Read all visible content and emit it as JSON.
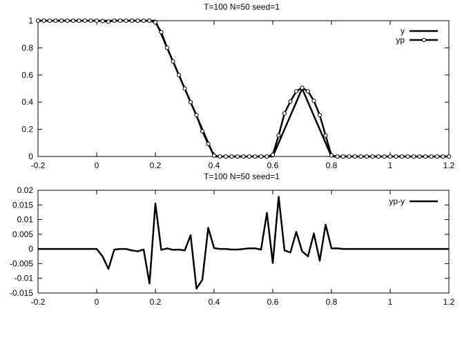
{
  "chart_data": [
    {
      "type": "line",
      "title": "T=100 N=50 seed=1",
      "xlim": [
        -0.2,
        1.2
      ],
      "ylim": [
        0,
        1
      ],
      "xticks": [
        "-0.2",
        "0",
        "0.2",
        "0.4",
        "0.6",
        "0.8",
        "1",
        "1.2"
      ],
      "yticks": [
        "0",
        "0.2",
        "0.4",
        "0.6",
        "0.8",
        "1"
      ],
      "legend_position": "top-right",
      "grid": false,
      "series": [
        {
          "name": "y",
          "style": "line",
          "color": "#000000",
          "x": [
            -0.2,
            0.2,
            0.4,
            0.6,
            0.7,
            0.8,
            1.2
          ],
          "y": [
            1,
            1,
            0,
            0,
            0.5,
            0,
            0
          ]
        },
        {
          "name": "yp",
          "style": "line-points",
          "color": "#000000",
          "x": [
            -0.2,
            -0.18,
            -0.16,
            -0.14,
            -0.12,
            -0.1,
            -0.08,
            -0.06,
            -0.04,
            -0.02,
            0.0,
            0.02,
            0.04,
            0.06,
            0.08,
            0.1,
            0.12,
            0.14,
            0.16,
            0.18,
            0.2,
            0.22,
            0.24,
            0.26,
            0.28,
            0.3,
            0.32,
            0.34,
            0.36,
            0.38,
            0.4,
            0.42,
            0.44,
            0.46,
            0.48,
            0.5,
            0.52,
            0.54,
            0.56,
            0.58,
            0.6,
            0.62,
            0.64,
            0.66,
            0.68,
            0.7,
            0.72,
            0.74,
            0.76,
            0.78,
            0.8,
            0.82,
            0.84,
            0.86,
            0.88,
            0.9,
            0.92,
            0.94,
            0.96,
            0.98,
            1.0,
            1.02,
            1.04,
            1.06,
            1.08,
            1.1,
            1.12,
            1.14,
            1.16,
            1.18,
            1.2
          ],
          "y": [
            1,
            1,
            1,
            1,
            1,
            1,
            1,
            1,
            1,
            1,
            1,
            0.997,
            0.993,
            1,
            1,
            1,
            1,
            1,
            1,
            1,
            0.988,
            0.916,
            0.8,
            0.7,
            0.6,
            0.5,
            0.4,
            0.305,
            0.186,
            0.093,
            0.007,
            0,
            0,
            0,
            0,
            0,
            0,
            0,
            0,
            0,
            0.012,
            0.155,
            0.318,
            0.405,
            0.48,
            0.506,
            0.48,
            0.41,
            0.305,
            0.154,
            0.008,
            0,
            0,
            0,
            0,
            0,
            0,
            0,
            0,
            0,
            0,
            0,
            0,
            0,
            0,
            0,
            0,
            0,
            0,
            0,
            0
          ]
        }
      ]
    },
    {
      "type": "line",
      "title": "T=100 N=50 seed=1",
      "xlim": [
        -0.2,
        1.2
      ],
      "ylim": [
        -0.015,
        0.02
      ],
      "xticks": [
        "-0.2",
        "0",
        "0.2",
        "0.4",
        "0.6",
        "0.8",
        "1",
        "1.2"
      ],
      "yticks": [
        "-0.015",
        "-0.01",
        "-0.005",
        "0",
        "0.005",
        "0.01",
        "0.015",
        "0.02"
      ],
      "legend_position": "top-right",
      "grid": false,
      "series": [
        {
          "name": "yp-y",
          "style": "line",
          "color": "#000000",
          "x": [
            -0.2,
            -0.18,
            -0.16,
            -0.14,
            -0.12,
            -0.1,
            -0.08,
            -0.06,
            -0.04,
            -0.02,
            0.0,
            0.02,
            0.04,
            0.06,
            0.08,
            0.1,
            0.12,
            0.14,
            0.16,
            0.18,
            0.2,
            0.22,
            0.24,
            0.26,
            0.28,
            0.3,
            0.32,
            0.34,
            0.36,
            0.38,
            0.4,
            0.42,
            0.44,
            0.46,
            0.48,
            0.5,
            0.52,
            0.54,
            0.56,
            0.58,
            0.6,
            0.62,
            0.64,
            0.66,
            0.68,
            0.7,
            0.72,
            0.74,
            0.76,
            0.78,
            0.8,
            0.82,
            0.84,
            0.86,
            0.88,
            0.9,
            0.92,
            0.94,
            0.96,
            0.98,
            1.0,
            1.02,
            1.04,
            1.06,
            1.08,
            1.1,
            1.12,
            1.14,
            1.16,
            1.18,
            1.2
          ],
          "y": [
            0,
            0,
            0,
            0,
            0,
            0,
            0,
            0,
            0,
            0,
            0,
            -0.0025,
            -0.0068,
            -0.0002,
            0,
            0,
            -0.0005,
            -0.0008,
            -0.0002,
            -0.0118,
            0.0155,
            -0.0003,
            0.0002,
            -0.0003,
            -0.0002,
            -0.0005,
            0.0047,
            -0.0135,
            -0.0105,
            0.0072,
            0.0003,
            0,
            0,
            -0.0002,
            -0.0002,
            0,
            0.0002,
            0.0002,
            -0.0002,
            0.0123,
            -0.0048,
            0.0178,
            -0.0005,
            -0.0012,
            0.0058,
            -0.0008,
            -0.0025,
            0.0053,
            -0.004,
            0.0083,
            0.0002,
            0.0002,
            0,
            0,
            0,
            0,
            0,
            0,
            0,
            0,
            0,
            0,
            0,
            0,
            0,
            0,
            0,
            0,
            0,
            0,
            0
          ]
        }
      ]
    }
  ]
}
